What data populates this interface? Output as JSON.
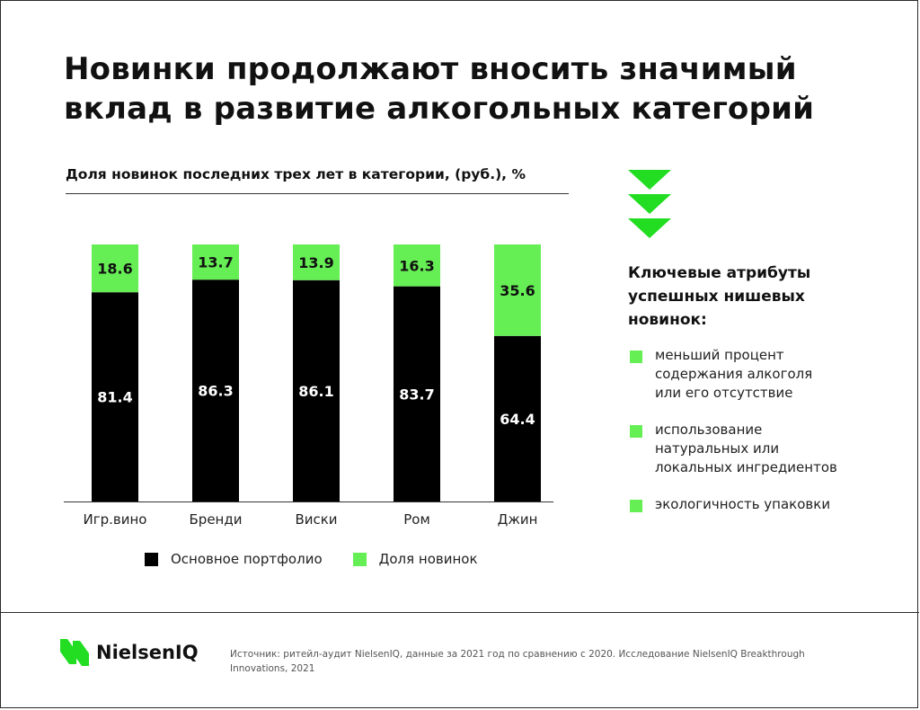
{
  "title": "Новинки продолжают вносить значимый вклад в развитие алкогольных категорий",
  "chart_data": {
    "type": "bar",
    "stacked": true,
    "subtitle": "Доля новинок последних трех лет в категории, (руб.), %",
    "categories": [
      "Игр.вино",
      "Бренди",
      "Виски",
      "Ром",
      "Джин"
    ],
    "series": [
      {
        "name": "Основное портфолио",
        "values": [
          81.4,
          86.3,
          86.1,
          83.7,
          64.4
        ],
        "color": "#000000",
        "label_color": "#ffffff"
      },
      {
        "name": "Доля новинок",
        "values": [
          18.6,
          13.7,
          13.9,
          16.3,
          35.6
        ],
        "color": "#66ee55",
        "label_color": "#111111"
      }
    ],
    "ylim": [
      0,
      100
    ],
    "grid": false,
    "legend": "bottom"
  },
  "sidebar": {
    "icon": "triple-chevron-down-icon",
    "icon_color": "#22dd22",
    "heading": "Ключевые атрибуты\nуспешных нишевых\nновинок:",
    "bullet_color": "#66ee55",
    "items": [
      "меньший процент\nсодержания алкоголя\nили его отсутствие",
      "использование\nнатуральных или\nлокальных ингредиентов",
      "экологичность упаковки"
    ]
  },
  "footer": {
    "logo_text": "NielsenIQ",
    "logo_color": "#22dd22",
    "source": "Источник: ритейл-аудит NielsenIQ, данные за 2021 год по сравнению с 2020. Исследование NielsenIQ Breakthrough Innovations, 2021"
  }
}
